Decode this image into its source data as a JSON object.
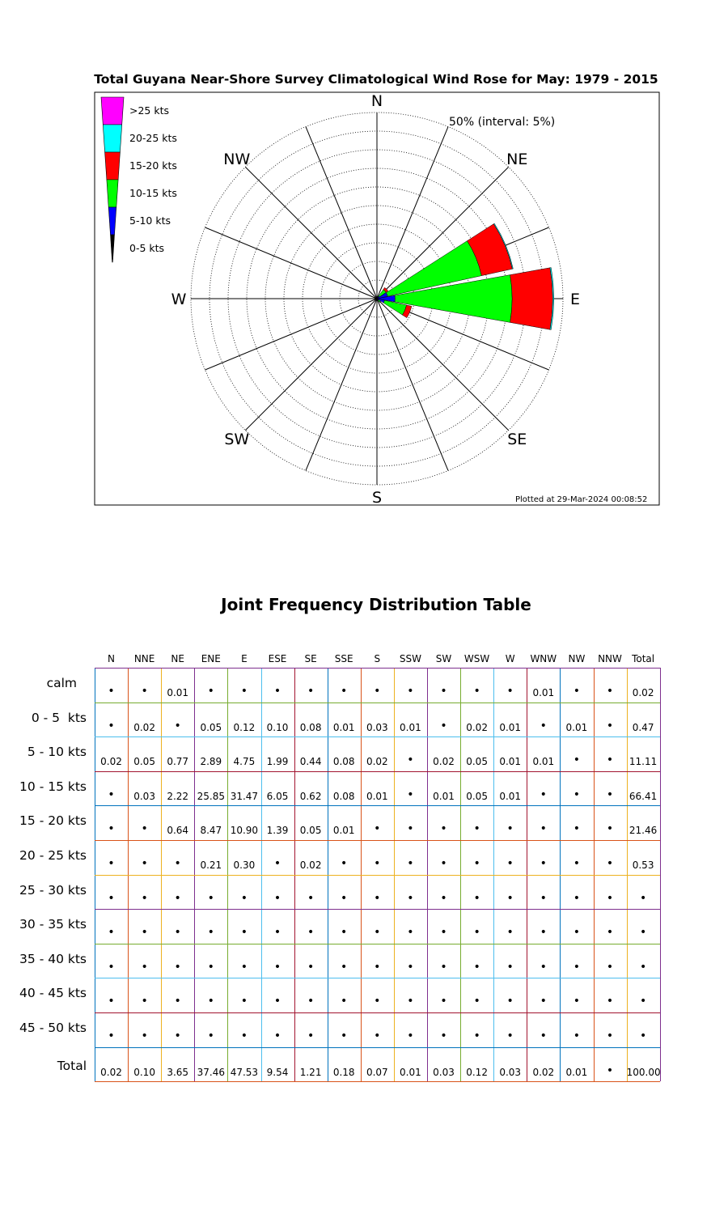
{
  "chart_data": [
    {
      "type": "wind-rose",
      "title": "Total Guyana Near-Shore Survey Climatological Wind Rose for May: 1979 - 2015",
      "radial_label": "50% (interval: 5%)",
      "rmax": 50,
      "interval": 5,
      "compass_labels": [
        "N",
        "NE",
        "E",
        "SE",
        "S",
        "SW",
        "W",
        "NW"
      ],
      "legend": [
        {
          "label": ">25 kts",
          "color": "#ff00ff"
        },
        {
          "label": "20-25 kts",
          "color": "#00ffff"
        },
        {
          "label": "15-20 kts",
          "color": "#ff0000"
        },
        {
          "label": "10-15 kts",
          "color": "#00ff00"
        },
        {
          "label": "5-10 kts",
          "color": "#0000ff"
        },
        {
          "label": "0-5 kts",
          "color": "#000000"
        }
      ],
      "directions": [
        "N",
        "NNE",
        "NE",
        "ENE",
        "E",
        "ESE",
        "SE",
        "SSE",
        "S",
        "SSW",
        "SW",
        "WSW",
        "W",
        "WNW",
        "NW",
        "NNW"
      ],
      "series": [
        {
          "name": "0-5 kts",
          "color": "#000000",
          "values": [
            0,
            0.02,
            0,
            0.05,
            0.12,
            0.1,
            0.08,
            0.01,
            0.03,
            0.01,
            0,
            0.02,
            0.01,
            0,
            0.01,
            0
          ]
        },
        {
          "name": "5-10 kts",
          "color": "#0000ff",
          "values": [
            0.02,
            0.05,
            0.77,
            2.89,
            4.75,
            1.99,
            0.44,
            0.08,
            0.02,
            0,
            0.02,
            0.05,
            0.01,
            0.01,
            0,
            0
          ]
        },
        {
          "name": "10-15 kts",
          "color": "#00ff00",
          "values": [
            0,
            0.03,
            2.22,
            25.85,
            31.47,
            6.05,
            0.62,
            0.08,
            0.01,
            0,
            0.01,
            0.05,
            0.01,
            0,
            0,
            0
          ]
        },
        {
          "name": "15-20 kts",
          "color": "#ff0000",
          "values": [
            0,
            0,
            0.64,
            8.47,
            10.9,
            1.39,
            0.05,
            0.01,
            0,
            0,
            0,
            0,
            0,
            0,
            0,
            0
          ]
        },
        {
          "name": "20-25 kts",
          "color": "#00ffff",
          "values": [
            0,
            0,
            0,
            0.21,
            0.3,
            0,
            0.02,
            0,
            0,
            0,
            0,
            0,
            0,
            0,
            0,
            0
          ]
        },
        {
          "name": ">25 kts",
          "color": "#ff00ff",
          "values": [
            0,
            0,
            0,
            0,
            0,
            0,
            0,
            0,
            0,
            0,
            0,
            0,
            0,
            0,
            0,
            0
          ]
        }
      ],
      "footnote": "Plotted at 29-Mar-2024 00:08:52"
    },
    {
      "type": "table",
      "title": "Joint Frequency Distribution Table",
      "columns": [
        "N",
        "NNE",
        "NE",
        "ENE",
        "E",
        "ESE",
        "SE",
        "SSE",
        "S",
        "SSW",
        "SW",
        "WSW",
        "W",
        "WNW",
        "NW",
        "NNW",
        "Total"
      ],
      "rows": [
        {
          "label": "calm",
          "cells": [
            "•",
            "•",
            "0.01",
            "•",
            "•",
            "•",
            "•",
            "•",
            "•",
            "•",
            "•",
            "•",
            "•",
            "0.01",
            "•",
            "•",
            "0.02"
          ]
        },
        {
          "label": "0 - 5  kts",
          "cells": [
            "•",
            "0.02",
            "•",
            "0.05",
            "0.12",
            "0.10",
            "0.08",
            "0.01",
            "0.03",
            "0.01",
            "•",
            "0.02",
            "0.01",
            "•",
            "0.01",
            "•",
            "0.47"
          ]
        },
        {
          "label": "5 - 10 kts",
          "cells": [
            "0.02",
            "0.05",
            "0.77",
            "2.89",
            "4.75",
            "1.99",
            "0.44",
            "0.08",
            "0.02",
            "•",
            "0.02",
            "0.05",
            "0.01",
            "0.01",
            "•",
            "•",
            "11.11"
          ]
        },
        {
          "label": "10 - 15 kts",
          "cells": [
            "•",
            "0.03",
            "2.22",
            "25.85",
            "31.47",
            "6.05",
            "0.62",
            "0.08",
            "0.01",
            "•",
            "0.01",
            "0.05",
            "0.01",
            "•",
            "•",
            "•",
            "66.41"
          ]
        },
        {
          "label": "15 - 20 kts",
          "cells": [
            "•",
            "•",
            "0.64",
            "8.47",
            "10.90",
            "1.39",
            "0.05",
            "0.01",
            "•",
            "•",
            "•",
            "•",
            "•",
            "•",
            "•",
            "•",
            "21.46"
          ]
        },
        {
          "label": "20 - 25 kts",
          "cells": [
            "•",
            "•",
            "•",
            "0.21",
            "0.30",
            "•",
            "0.02",
            "•",
            "•",
            "•",
            "•",
            "•",
            "•",
            "•",
            "•",
            "•",
            "0.53"
          ]
        },
        {
          "label": "25 - 30 kts",
          "cells": [
            "•",
            "•",
            "•",
            "•",
            "•",
            "•",
            "•",
            "•",
            "•",
            "•",
            "•",
            "•",
            "•",
            "•",
            "•",
            "•",
            "•"
          ]
        },
        {
          "label": "30 - 35 kts",
          "cells": [
            "•",
            "•",
            "•",
            "•",
            "•",
            "•",
            "•",
            "•",
            "•",
            "•",
            "•",
            "•",
            "•",
            "•",
            "•",
            "•",
            "•"
          ]
        },
        {
          "label": "35 - 40 kts",
          "cells": [
            "•",
            "•",
            "•",
            "•",
            "•",
            "•",
            "•",
            "•",
            "•",
            "•",
            "•",
            "•",
            "•",
            "•",
            "•",
            "•",
            "•"
          ]
        },
        {
          "label": "40 - 45 kts",
          "cells": [
            "•",
            "•",
            "•",
            "•",
            "•",
            "•",
            "•",
            "•",
            "•",
            "•",
            "•",
            "•",
            "•",
            "•",
            "•",
            "•",
            "•"
          ]
        },
        {
          "label": "45 - 50 kts",
          "cells": [
            "•",
            "•",
            "•",
            "•",
            "•",
            "•",
            "•",
            "•",
            "•",
            "•",
            "•",
            "•",
            "•",
            "•",
            "•",
            "•",
            "•"
          ]
        },
        {
          "label": "Total",
          "cells": [
            "0.02",
            "0.10",
            "3.65",
            "37.46",
            "47.53",
            "9.54",
            "1.21",
            "0.18",
            "0.07",
            "0.01",
            "0.03",
            "0.12",
            "0.03",
            "0.02",
            "0.01",
            "•",
            "100.00"
          ]
        }
      ]
    }
  ],
  "grid_line_colors": [
    "#0072bd",
    "#d95319",
    "#edb120",
    "#7e2f8e",
    "#77ac30",
    "#4dbeee",
    "#a2142f"
  ]
}
